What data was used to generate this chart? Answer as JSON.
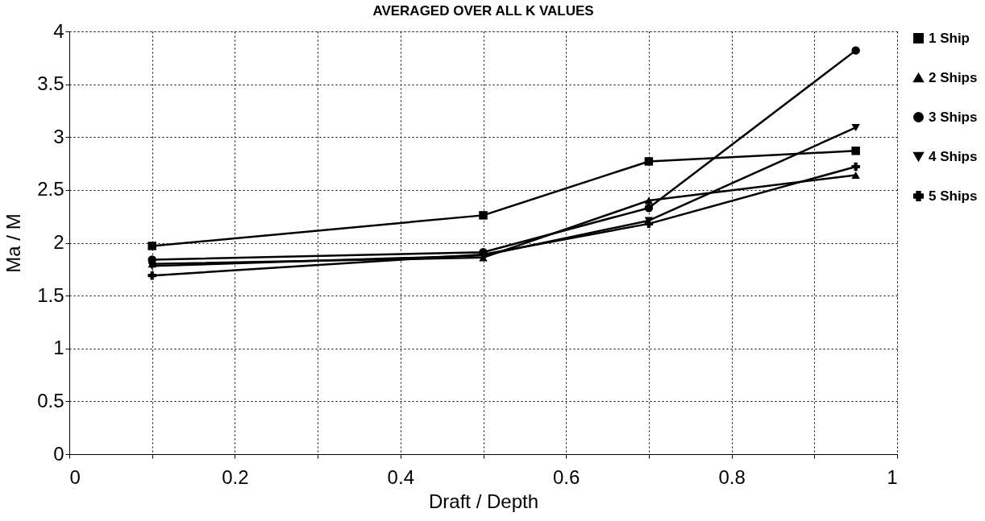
{
  "chart_data": {
    "type": "line",
    "title": "AVERAGED OVER ALL K VALUES",
    "xlabel": "Draft / Depth",
    "ylabel": "Ma / M",
    "x": [
      0.1,
      0.5,
      0.7,
      0.95
    ],
    "series": [
      {
        "name": "1 Ship",
        "color": "#000000",
        "marker": "square",
        "values": [
          1.97,
          2.26,
          2.77,
          2.87
        ]
      },
      {
        "name": "2 Ships",
        "color": "#000000",
        "marker": "triangle",
        "values": [
          1.8,
          1.86,
          2.4,
          2.64
        ]
      },
      {
        "name": "3 Ships",
        "color": "#000000",
        "marker": "circle",
        "values": [
          1.84,
          1.91,
          2.33,
          3.82
        ]
      },
      {
        "name": "4 Ships",
        "color": "#000000",
        "marker": "triangle-down",
        "values": [
          1.78,
          1.88,
          2.21,
          3.09
        ]
      },
      {
        "name": "5 Ships",
        "color": "#000000",
        "marker": "cross",
        "values": [
          1.69,
          1.89,
          2.18,
          2.72
        ]
      }
    ],
    "xlim": [
      0,
      1
    ],
    "xticks": [
      0,
      {
        "value": 0.1,
        "label": null
      },
      0.2,
      {
        "value": 0.3,
        "label": null
      },
      0.4,
      {
        "value": 0.5,
        "label": null
      },
      0.6,
      {
        "value": 0.7,
        "label": null
      },
      0.8,
      {
        "value": 0.9,
        "label": null
      },
      1
    ],
    "ylim": [
      0,
      4
    ],
    "yticks": [
      0,
      0.5,
      1,
      1.5,
      2,
      2.5,
      3,
      3.5,
      4
    ],
    "grid": true,
    "legend": "right",
    "line_style": "solid"
  }
}
